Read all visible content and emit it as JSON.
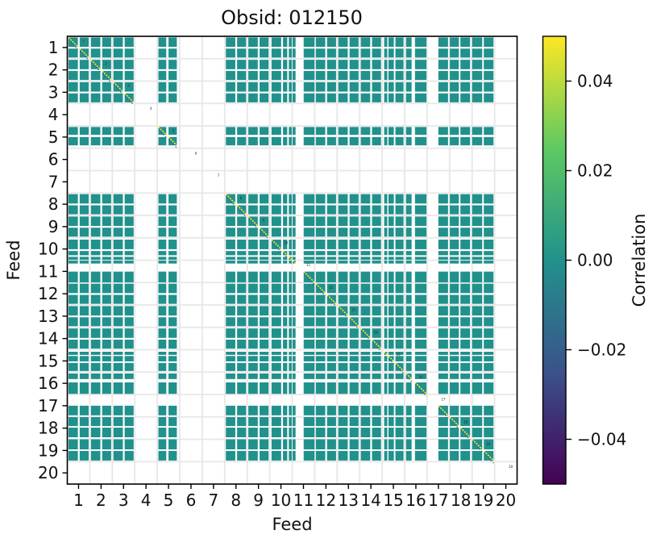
{
  "chart_data": {
    "type": "heatmap",
    "title": "Obsid: 012150",
    "xlabel": "Feed",
    "ylabel": "Feed",
    "x_tick_labels": [
      "1",
      "2",
      "3",
      "4",
      "5",
      "6",
      "7",
      "8",
      "9",
      "10",
      "11",
      "12",
      "13",
      "14",
      "15",
      "16",
      "17",
      "18",
      "19",
      "20"
    ],
    "y_tick_labels": [
      "1",
      "2",
      "3",
      "4",
      "5",
      "6",
      "7",
      "8",
      "9",
      "10",
      "11",
      "12",
      "13",
      "14",
      "15",
      "16",
      "17",
      "18",
      "19",
      "20"
    ],
    "n_feeds": 20,
    "grid": true,
    "cell_color": "#21918c",
    "cell_value_meaning": "correlation near 0.00",
    "diagonal_color": "#fde725",
    "diagonal_shadow_color": "#3b528b",
    "grid_color": "#e7e7e7",
    "annotations": [
      "1",
      "2",
      "3",
      "4",
      "5",
      "6",
      "7",
      "8",
      "9",
      "10",
      "11",
      "12",
      "13",
      "14",
      "15",
      "16",
      "17",
      "18",
      "19",
      "20"
    ],
    "flagged_feeds": [
      4,
      6,
      7,
      20
    ],
    "partially_flagged_feeds": [
      10,
      11,
      15,
      16,
      17
    ],
    "unflagged_segments_per_feed": {
      "1": [
        [
          0.05,
          0.47
        ],
        [
          0.55,
          0.95
        ]
      ],
      "2": [
        [
          0.05,
          0.47
        ],
        [
          0.55,
          0.95
        ]
      ],
      "3": [
        [
          0.05,
          0.47
        ],
        [
          0.55,
          0.95
        ]
      ],
      "4": [],
      "5": [
        [
          0.05,
          0.4
        ],
        [
          0.5,
          0.87
        ]
      ],
      "6": [],
      "7": [],
      "8": [
        [
          0.05,
          0.47
        ],
        [
          0.55,
          0.95
        ]
      ],
      "9": [
        [
          0.05,
          0.47
        ],
        [
          0.55,
          0.95
        ]
      ],
      "10": [
        [
          0.08,
          0.51
        ],
        [
          0.59,
          0.78
        ],
        [
          0.85,
          0.98
        ]
      ],
      "11": [
        [
          0.02,
          0.15
        ],
        [
          0.51,
          0.99
        ]
      ],
      "12": [
        [
          0.05,
          0.47
        ],
        [
          0.55,
          0.95
        ]
      ],
      "13": [
        [
          0.05,
          0.47
        ],
        [
          0.55,
          0.95
        ]
      ],
      "14": [
        [
          0.05,
          0.47
        ],
        [
          0.55,
          0.95
        ]
      ],
      "15": [
        [
          0.09,
          0.23
        ],
        [
          0.28,
          0.52
        ],
        [
          0.59,
          0.95
        ]
      ],
      "16": [
        [
          0.06,
          0.31
        ],
        [
          0.46,
          0.97
        ]
      ],
      "17": [
        [
          0.5,
          0.93
        ]
      ],
      "18": [
        [
          0.01,
          0.41
        ],
        [
          0.48,
          0.91
        ]
      ],
      "19": [
        [
          0.0,
          0.45
        ],
        [
          0.52,
          0.95
        ]
      ],
      "20": []
    },
    "colorbar": {
      "label": "Correlation",
      "colormap": "viridis",
      "vmin": -0.05,
      "vmax": 0.05,
      "tick_labels": [
        "0.04",
        "0.02",
        "0.00",
        "−0.02",
        "−0.04"
      ],
      "tick_values": [
        0.04,
        0.02,
        0.0,
        -0.02,
        -0.04
      ],
      "gradient_stops_top_to_bottom": [
        "#fde725",
        "#5ec962",
        "#21918c",
        "#3b528b",
        "#440154"
      ]
    }
  }
}
